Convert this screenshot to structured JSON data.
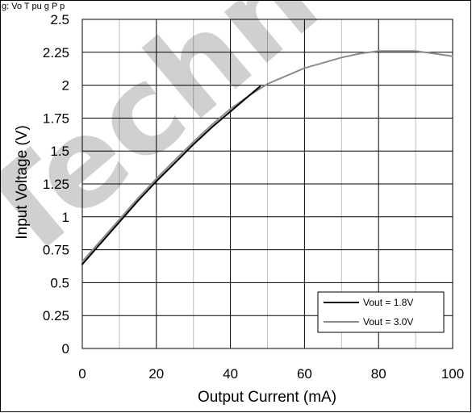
{
  "caption_fragment": "g: Vo  T       pu    g     P     p",
  "watermark_text": "Techn",
  "chart_data": {
    "type": "line",
    "title": "",
    "xlabel": "Output Current (mA)",
    "ylabel": "Input Voltage (V)",
    "xlim": [
      0,
      100
    ],
    "ylim": [
      0,
      2.5
    ],
    "xticks": [
      0,
      20,
      40,
      60,
      80,
      100
    ],
    "yticks": [
      0,
      0.25,
      0.5,
      0.75,
      1,
      1.25,
      1.5,
      1.75,
      2,
      2.25,
      2.5
    ],
    "xtick_labels": [
      "0",
      "20",
      "40",
      "60",
      "80",
      "100"
    ],
    "ytick_labels": [
      "0",
      "0.25",
      "0.5",
      "0.75",
      "1",
      "1.25",
      "1.5",
      "1.75",
      "2",
      "2.25",
      "2.5"
    ],
    "grid": true,
    "legend_position": "bottom-right",
    "series": [
      {
        "name": "Vout = 1.8V",
        "color": "#000000",
        "x": [
          0,
          5,
          10,
          15,
          20,
          25,
          30,
          35,
          40,
          45,
          48
        ],
        "y": [
          0.64,
          0.8,
          0.96,
          1.12,
          1.27,
          1.41,
          1.55,
          1.68,
          1.8,
          1.92,
          1.99
        ]
      },
      {
        "name": "Vout = 3.0V",
        "color": "#8c8c8c",
        "x": [
          0,
          5,
          10,
          15,
          20,
          25,
          30,
          35,
          40,
          45,
          50,
          55,
          60,
          65,
          70,
          75,
          80,
          85,
          90,
          95,
          100
        ],
        "y": [
          0.66,
          0.82,
          0.98,
          1.14,
          1.29,
          1.43,
          1.57,
          1.7,
          1.82,
          1.92,
          2.01,
          2.07,
          2.13,
          2.17,
          2.21,
          2.24,
          2.26,
          2.26,
          2.26,
          2.24,
          2.22
        ]
      }
    ]
  }
}
